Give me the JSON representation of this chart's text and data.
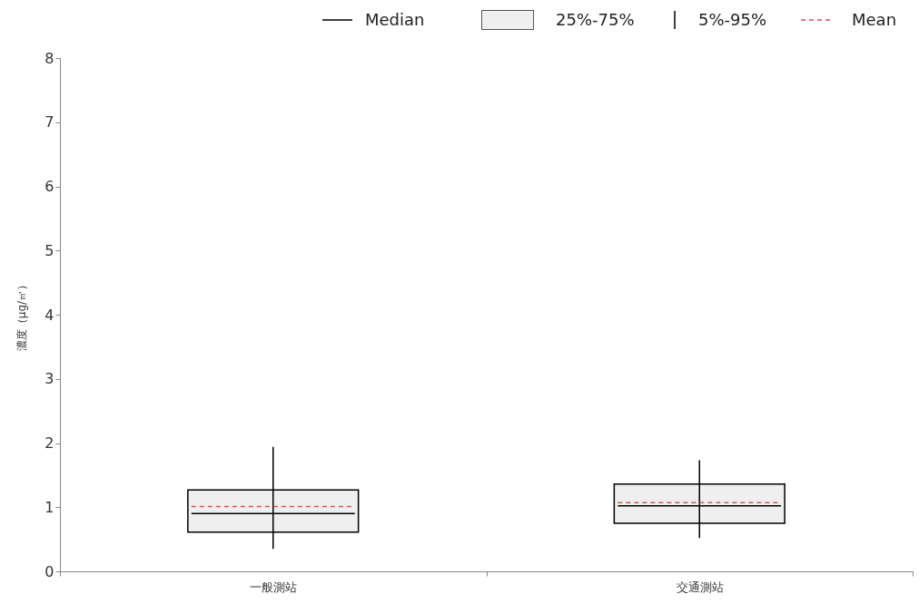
{
  "chart_data": {
    "type": "box",
    "ylabel": "濃度（μg/㎥）",
    "categories": [
      "一般測站",
      "交通測站"
    ],
    "boxes": [
      {
        "low": 0.35,
        "q1": 0.61,
        "median": 0.9,
        "q3": 1.27,
        "high": 1.94,
        "mean": 1.01
      },
      {
        "low": 0.52,
        "q1": 0.75,
        "median": 1.02,
        "q3": 1.36,
        "high": 1.73,
        "mean": 1.07
      }
    ],
    "ylim": [
      0,
      8
    ],
    "yticks": [
      0,
      1,
      2,
      3,
      4,
      5,
      6,
      7,
      8
    ],
    "grid": false,
    "annotations": [
      "Median",
      "25%-75%",
      "5%-95%",
      "Mean"
    ]
  }
}
